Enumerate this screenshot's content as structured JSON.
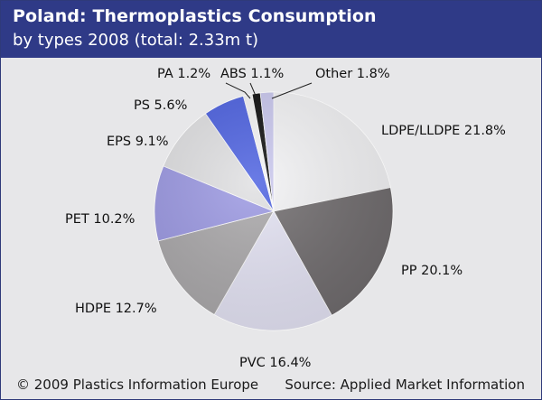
{
  "header": {
    "title": "Poland: Thermoplastics Consumption",
    "subtitle": "by types 2008 (total: 2.33m t)"
  },
  "footer": {
    "copyright": "© 2009 Plastics Information Europe",
    "source": "Source: Applied Market Information"
  },
  "chart_data": {
    "type": "pie",
    "title": "Poland: Thermoplastics Consumption",
    "subtitle": "by types 2008 (total: 2.33m t)",
    "slices": [
      {
        "name": "LDPE/LLDPE",
        "value": 21.8,
        "label": "LDPE/LLDPE 21.8%",
        "color": "#f3f3f5"
      },
      {
        "name": "PP",
        "value": 20.1,
        "label": "PP 20.1%",
        "color": "#6e6a6c"
      },
      {
        "name": "PVC",
        "value": 16.4,
        "label": "PVC 16.4%",
        "color": "#e4e3f4"
      },
      {
        "name": "HDPE",
        "value": 12.7,
        "label": "HDPE 12.7%",
        "color": "#a9a7a9"
      },
      {
        "name": "PET",
        "value": 10.2,
        "label": "PET 10.2%",
        "color": "#9b98e3"
      },
      {
        "name": "EPS",
        "value": 9.1,
        "label": "EPS 9.1%",
        "color": "#e0e0e2"
      },
      {
        "name": "PS",
        "value": 5.6,
        "label": "PS 5.6%",
        "color": "#4a5fe0"
      },
      {
        "name": "PA",
        "value": 1.2,
        "label": "PA 1.2%",
        "color": "#f5f5f5"
      },
      {
        "name": "ABS",
        "value": 1.1,
        "label": "ABS 1.1%",
        "color": "#0a0a0a"
      },
      {
        "name": "Other",
        "value": 1.8,
        "label": "Other 1.8%",
        "color": "#c9c7ee"
      }
    ]
  }
}
